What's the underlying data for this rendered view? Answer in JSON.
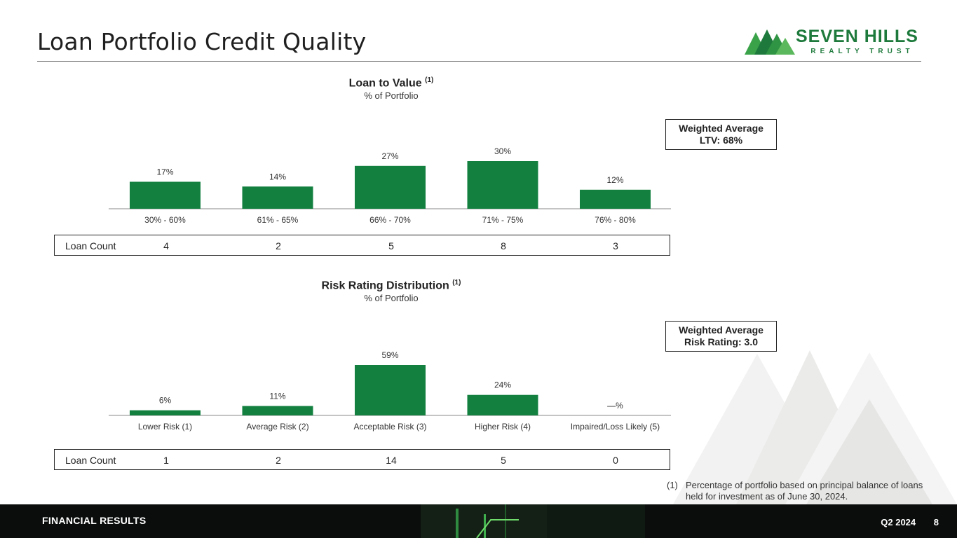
{
  "page": {
    "title": "Loan Portfolio Credit Quality",
    "logo": {
      "word": "SEVEN HILLS",
      "sub": "REALTY TRUST"
    },
    "footer": {
      "section": "FINANCIAL RESULTS",
      "period": "Q2 2024",
      "page_number": "8"
    },
    "footnote": {
      "marker": "(1)",
      "text": "Percentage of portfolio based on principal balance of loans held for investment as of June 30, 2024."
    },
    "colors": {
      "bar": "#138040",
      "brand": "#1e7a3c",
      "footer_bg": "#0b0d0c"
    }
  },
  "ltv": {
    "title": "Loan to Value",
    "title_note": "(1)",
    "subtitle": "% of Portfolio",
    "weighted_avg": {
      "line1": "Weighted Average",
      "line2": "LTV: 68%"
    },
    "loan_count": {
      "label": "Loan Count",
      "values": [
        "4",
        "2",
        "5",
        "8",
        "3"
      ]
    }
  },
  "risk": {
    "title": "Risk Rating Distribution",
    "title_note": "(1)",
    "subtitle": "% of Portfolio",
    "weighted_avg": {
      "line1": "Weighted Average",
      "line2": "Risk Rating: 3.0"
    },
    "loan_count": {
      "label": "Loan Count",
      "values": [
        "1",
        "2",
        "14",
        "5",
        "0"
      ]
    }
  },
  "chart_data": [
    {
      "type": "bar",
      "title": "Loan to Value",
      "subtitle": "% of Portfolio",
      "categories": [
        "30% - 60%",
        "61% - 65%",
        "66% - 70%",
        "71% - 75%",
        "76% - 80%"
      ],
      "values": [
        17,
        14,
        27,
        30,
        12
      ],
      "data_labels": [
        "17%",
        "14%",
        "27%",
        "30%",
        "12%"
      ],
      "xlabel": "",
      "ylabel": "",
      "ylim": [
        0,
        30
      ],
      "grid": false
    },
    {
      "type": "bar",
      "title": "Risk Rating Distribution",
      "subtitle": "% of Portfolio",
      "categories": [
        "Lower Risk (1)",
        "Average Risk (2)",
        "Acceptable Risk (3)",
        "Higher Risk (4)",
        "Impaired/Loss Likely (5)"
      ],
      "values": [
        6,
        11,
        59,
        24,
        0
      ],
      "data_labels": [
        "6%",
        "11%",
        "59%",
        "24%",
        "—%"
      ],
      "xlabel": "",
      "ylabel": "",
      "ylim": [
        0,
        59
      ],
      "grid": false
    }
  ]
}
